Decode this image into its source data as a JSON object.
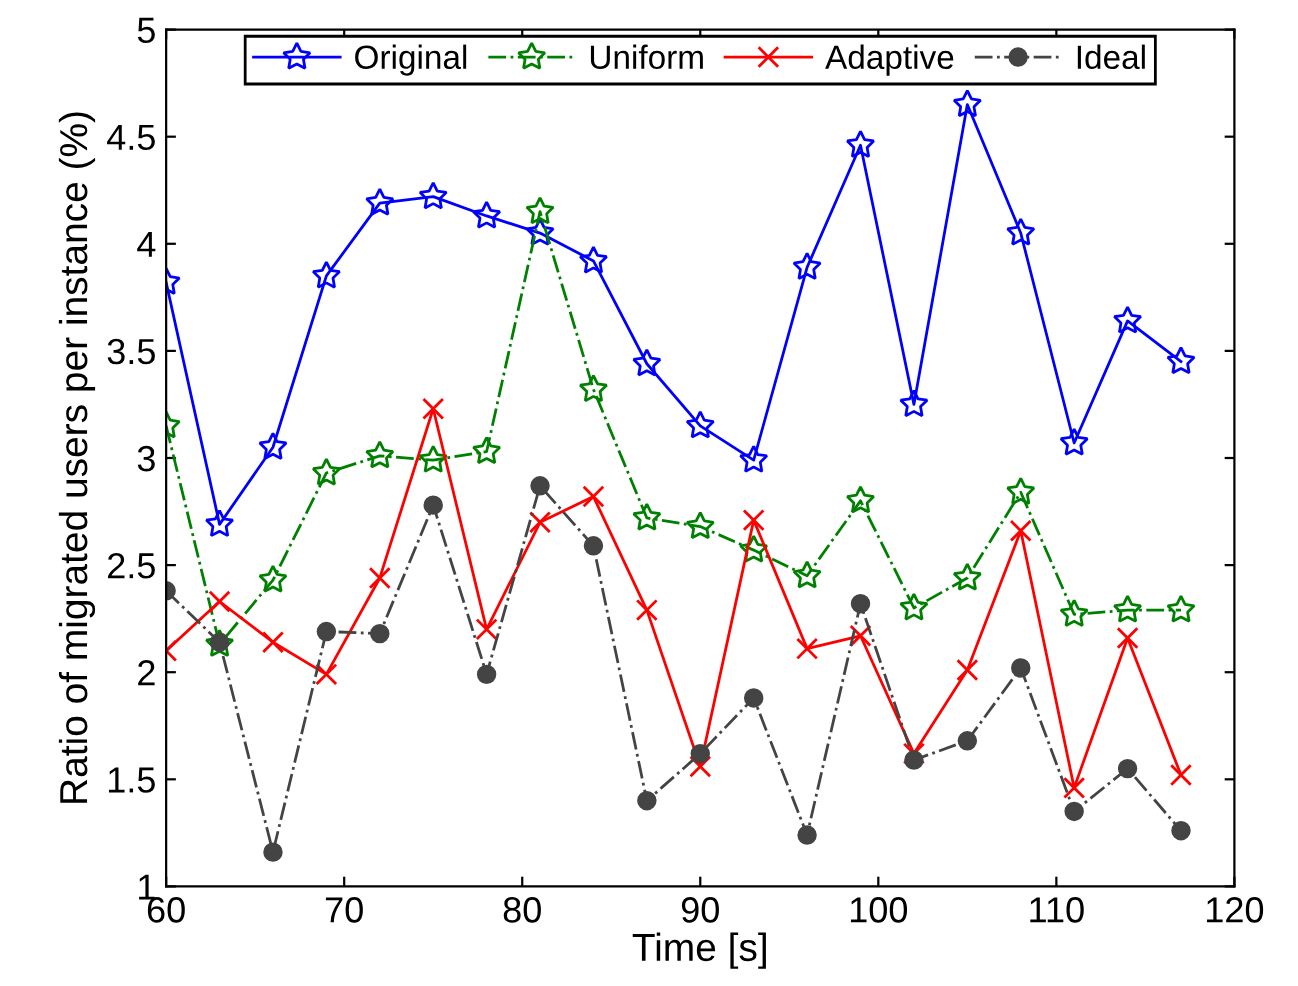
{
  "chart_data": {
    "type": "line",
    "xlabel": "Time [s]",
    "ylabel": "Ratio of migrated users per instance (%)",
    "x": [
      60,
      63,
      66,
      69,
      72,
      75,
      78,
      81,
      84,
      87,
      90,
      93,
      96,
      99,
      102,
      105,
      108,
      111,
      114,
      117
    ],
    "series": [
      {
        "name": "Original",
        "color": "#0000ff",
        "marker": "star",
        "line_style": "solid",
        "values": [
          3.82,
          2.69,
          3.05,
          3.85,
          4.19,
          4.22,
          4.13,
          4.05,
          3.92,
          3.44,
          3.15,
          2.99,
          3.89,
          4.46,
          3.25,
          4.65,
          4.05,
          3.07,
          3.64,
          3.45
        ]
      },
      {
        "name": "Uniform",
        "color": "#008000",
        "marker": "star",
        "line_style": "dashed",
        "values": [
          3.15,
          2.13,
          2.43,
          2.93,
          3.01,
          2.99,
          3.03,
          4.15,
          3.32,
          2.72,
          2.68,
          2.57,
          2.45,
          2.8,
          2.3,
          2.44,
          2.84,
          2.27,
          2.29,
          2.29
        ]
      },
      {
        "name": "Adaptive",
        "color": "#ff0000",
        "marker": "cross",
        "line_style": "solid",
        "values": [
          2.1,
          2.33,
          2.14,
          1.99,
          2.44,
          3.23,
          2.2,
          2.7,
          2.82,
          2.29,
          1.56,
          2.71,
          2.11,
          2.17,
          1.62,
          2.01,
          2.66,
          1.46,
          2.16,
          1.52
        ]
      },
      {
        "name": "Ideal",
        "color": "#444444",
        "marker": "circle",
        "line_style": "dashed",
        "values": [
          2.38,
          2.14,
          1.16,
          2.19,
          2.18,
          2.78,
          1.99,
          2.87,
          2.59,
          1.4,
          1.62,
          1.88,
          1.24,
          2.32,
          1.59,
          1.68,
          2.02,
          1.35,
          1.55,
          1.26
        ]
      }
    ],
    "xlim": [
      60,
      120
    ],
    "xticks": [
      60,
      70,
      80,
      90,
      100,
      110,
      120
    ],
    "ylim": [
      1,
      5
    ],
    "yticks": [
      1,
      1.5,
      2,
      2.5,
      3,
      3.5,
      4,
      4.5,
      5
    ],
    "grid": false,
    "legend": "top"
  }
}
